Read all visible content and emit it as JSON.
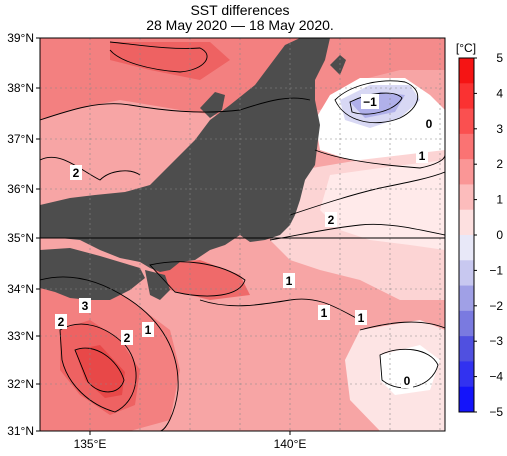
{
  "title": "SST differences",
  "subtitle": "28 May 2020 — 18 May 2020.",
  "axes": {
    "lat_labels": [
      "39°N",
      "38°N",
      "37°N",
      "36°N",
      "35°N",
      "34°N",
      "33°N",
      "32°N",
      "31°N"
    ],
    "lon_labels": [
      "135°E",
      "140°E"
    ]
  },
  "colorbar": {
    "unit": "[°C]",
    "ticks": [
      "5",
      "4",
      "3",
      "2",
      "1",
      "0",
      "−1",
      "−2",
      "−3",
      "−4",
      "−5"
    ],
    "colors": [
      "#f51414",
      "#fa3232",
      "#fa5050",
      "#fa7373",
      "#fa9696",
      "#fcbcbc",
      "#fde0e0",
      "#e8e8f8",
      "#c8c8f0",
      "#a0a0e6",
      "#7a7ae0",
      "#5050e0",
      "#3232f0",
      "#1414fa"
    ]
  },
  "contour_labels": [
    "2",
    "2",
    "3",
    "2",
    "1",
    "1",
    "1",
    "1",
    "2",
    "1",
    "0",
    "−1",
    "0"
  ],
  "colors": {
    "land": "#4d4d4d",
    "sea_warm": "#f7a5a5",
    "sea_hot": "#f06a6a"
  }
}
